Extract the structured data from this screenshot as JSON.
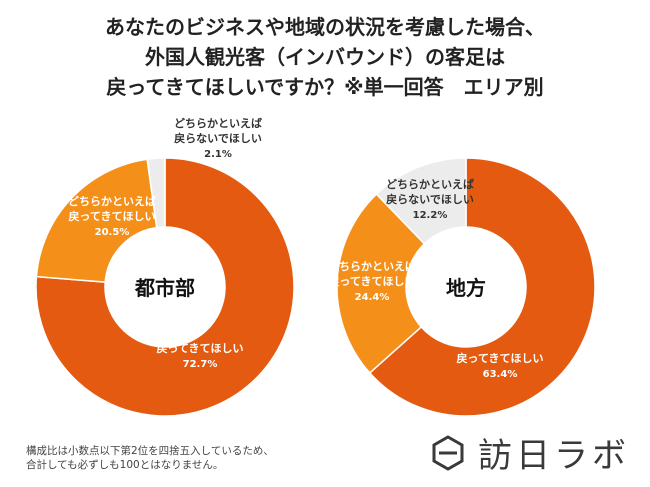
{
  "chart_data": [
    {
      "type": "pie",
      "title": "あなたのビジネスや地域の状況を考慮した場合、外国人観光客（インバウンド）の客足は戻ってきてほしいですか？※単一回答 エリア別",
      "center_label": "都市部",
      "slices": [
        {
          "label": "戻ってきてほしい",
          "value": 72.7,
          "display": "72.7%",
          "color": "#e35a10"
        },
        {
          "label": "どちらかといえば 戻ってきてほしい",
          "value": 20.5,
          "display": "20.5%",
          "color": "#f4901a"
        },
        {
          "label": "どちらかといえば 戻らないでほしい",
          "value": 2.1,
          "display": "2.1%",
          "color": "#ececec"
        }
      ]
    },
    {
      "type": "pie",
      "center_label": "地方",
      "slices": [
        {
          "label": "戻ってきてほしい",
          "value": 63.4,
          "display": "63.4%",
          "color": "#e35a10"
        },
        {
          "label": "どちらかといえば 戻ってきてほしい",
          "value": 24.4,
          "display": "24.4%",
          "color": "#f4901a"
        },
        {
          "label": "どちらかといえば 戻らないでほしい",
          "value": 12.2,
          "display": "12.2%",
          "color": "#ececec"
        }
      ]
    }
  ],
  "title_lines": [
    "あなたのビジネスや地域の状況を考慮した場合、",
    "外国人観光客（インバウンド）の客足は",
    "戻ってきてほしいですか？※単一回答　エリア別"
  ],
  "footnote_lines": [
    "構成比は小数点以下第2位を四捨五入しているため、",
    "合計しても必ずしも100とはなりません。"
  ],
  "logo": {
    "text": "訪日ラボ",
    "icon": "hexagon-logo-icon"
  }
}
